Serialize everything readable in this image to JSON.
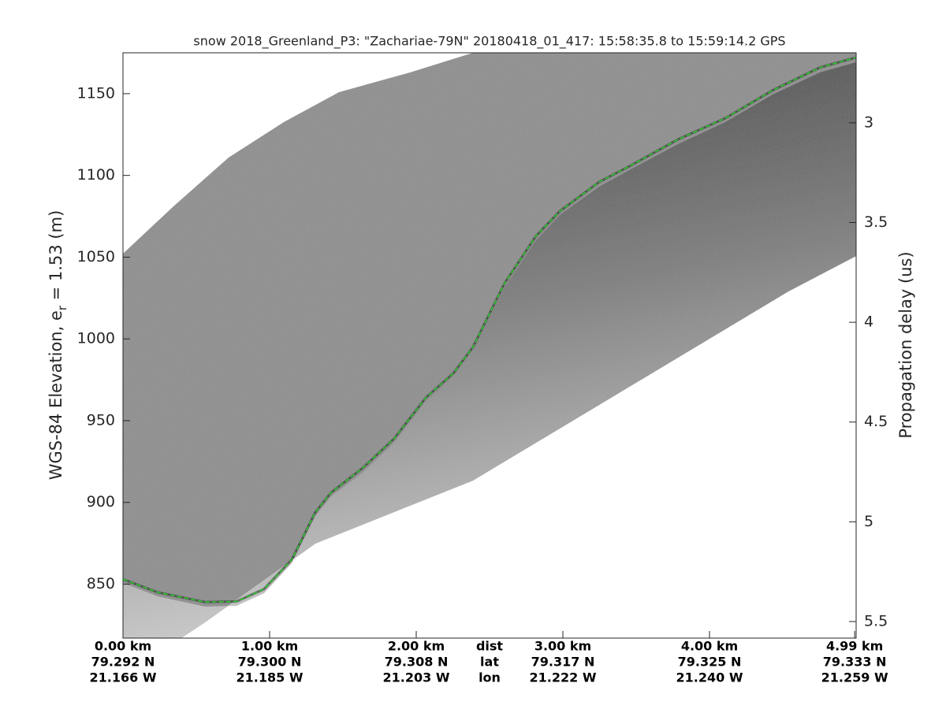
{
  "chart_data": {
    "type": "line",
    "title": "snow 2018_Greenland_P3: \"Zachariae-79N\"  20180418_01_417: 15:58:35.8 to 15:59:14.2 GPS",
    "y_label": {
      "text": "WGS-84 Elevation, e",
      "subscript": "r",
      "suffix": " = 1.53 (m)"
    },
    "y2_label": "Propagation delay (us)",
    "xlim": [
      0,
      5.0
    ],
    "xticks": [
      {
        "value": 0,
        "label": "0.00 km"
      },
      {
        "value": 1,
        "label": "1.00 km"
      },
      {
        "value": 2,
        "label": "2.00 km"
      },
      {
        "value": 3,
        "label": "3.00 km"
      },
      {
        "value": 4,
        "label": "4.00 km"
      },
      {
        "value": 4.99,
        "label": "4.99 km"
      }
    ],
    "lat_labels": [
      "79.292 N",
      "79.300 N",
      "79.308 N",
      "79.317 N",
      "79.325 N",
      "79.333 N"
    ],
    "lon_labels": [
      "21.166 W",
      "21.185 W",
      "21.203 W",
      "21.222 W",
      "21.240 W",
      "21.259 W"
    ],
    "row_labels": [
      "dist",
      "lat",
      "lon"
    ],
    "ylim": [
      817,
      1175
    ],
    "yticks": [
      850,
      900,
      950,
      1000,
      1050,
      1100,
      1150
    ],
    "y2lim": [
      5.583,
      2.649
    ],
    "y2ticks": [
      3,
      3.5,
      4,
      4.5,
      5,
      5.5
    ],
    "x": [
      0,
      0.237,
      0.559,
      0.774,
      0.962,
      1.151,
      1.312,
      1.419,
      1.634,
      1.849,
      2.065,
      2.253,
      2.387,
      2.602,
      2.817,
      2.978,
      3.247,
      3.462,
      3.785,
      4.108,
      4.43,
      4.753,
      4.995
    ],
    "series": [
      {
        "color": "#2ecc2e",
        "values": [
          853,
          845,
          839,
          839.4,
          847,
          865,
          894,
          906,
          921,
          939,
          964,
          979,
          995,
          1034,
          1063,
          1078,
          1096,
          1106,
          1122,
          1135,
          1152,
          1166,
          1172
        ]
      }
    ]
  }
}
